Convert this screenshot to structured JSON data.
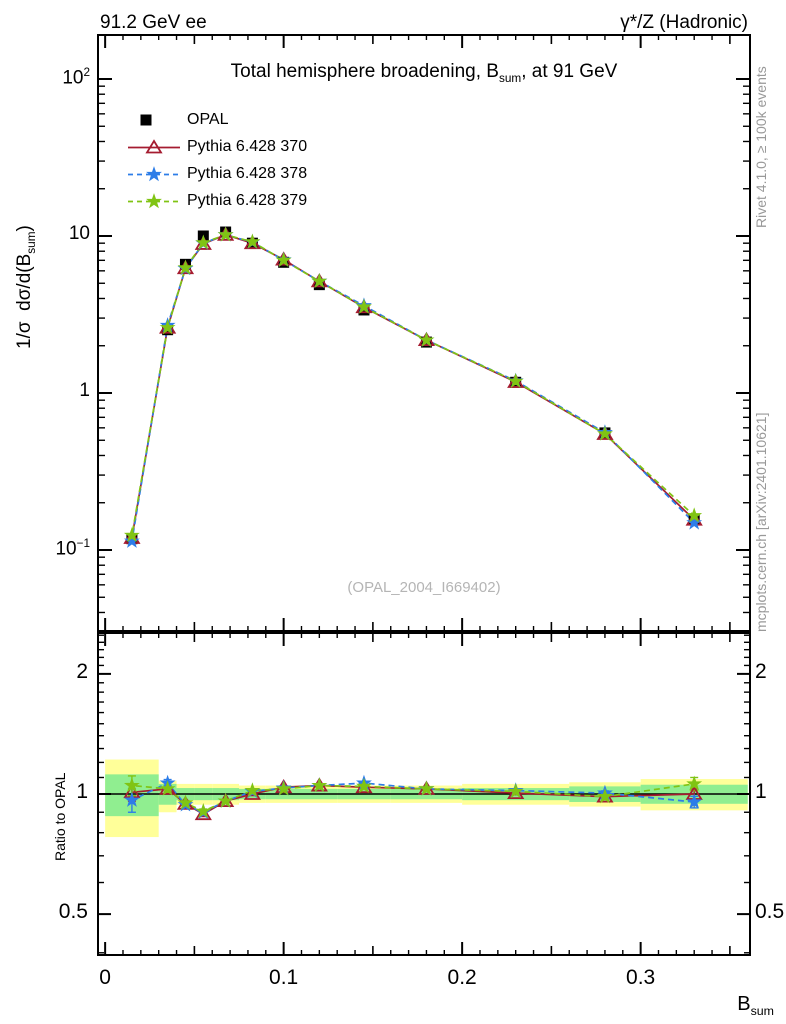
{
  "header": {
    "left": "91.2 GeV ee",
    "right": "γ*/Z (Hadronic)"
  },
  "side_texts": {
    "top": "Rivet 4.1.0, ≥ 100k events",
    "bottom": "mcplots.cern.ch [arXiv:2401.10621]"
  },
  "chart_data": {
    "type": "line",
    "panels": [
      "main",
      "ratio"
    ],
    "title": "Total hemisphere broadening, B_sum, at 91 GeV",
    "title_parts": {
      "pre": "Total hemisphere broadening, B",
      "sub": "sum",
      "post": ", at 91 GeV"
    },
    "xlabel_parts": {
      "pre": "B",
      "sub": "sum"
    },
    "ylabel_parts": {
      "pre": "1/σ  dσ/d(B",
      "sub": "sum",
      "post": ")"
    },
    "ratio_ylabel": "Ratio to OPAL",
    "watermark": "(OPAL_2004_I669402)",
    "x_axis": {
      "lim": [
        -0.004,
        0.361
      ],
      "major_ticks": [
        0,
        0.1,
        0.2,
        0.3
      ],
      "tick_labels": [
        "0",
        "0.1",
        "0.2",
        "0.3"
      ],
      "medium_ticks": [
        0.05,
        0.15,
        0.25,
        0.35
      ],
      "minor_step": 0.01
    },
    "main_y_axis": {
      "scale": "log",
      "lim": [
        0.031,
        191
      ],
      "decade_exps": [
        2,
        1,
        0,
        -1
      ]
    },
    "ratio_y_axis": {
      "scale": "log",
      "lim": [
        0.395,
        2.53
      ],
      "major_ticks": [
        2,
        1,
        0.5
      ],
      "tick_labels": [
        "2",
        "1",
        "0.5"
      ]
    },
    "bins": {
      "edges": [
        0.0,
        0.03,
        0.04,
        0.05,
        0.06,
        0.075,
        0.09,
        0.11,
        0.13,
        0.16,
        0.2,
        0.26,
        0.3,
        0.36
      ],
      "centers": [
        0.015,
        0.035,
        0.045,
        0.055,
        0.0675,
        0.0825,
        0.1,
        0.12,
        0.145,
        0.18,
        0.23,
        0.28,
        0.33
      ]
    },
    "opal": {
      "label": "OPAL",
      "color": "#000000",
      "values": [
        0.118,
        2.53,
        6.6,
        10.0,
        10.6,
        9.0,
        6.8,
        4.9,
        3.38,
        2.11,
        1.17,
        0.557,
        0.156
      ],
      "errors": [
        0.005,
        0.06,
        0.12,
        0.15,
        0.15,
        0.12,
        0.09,
        0.06,
        0.04,
        0.025,
        0.015,
        0.008,
        0.004
      ]
    },
    "series": [
      {
        "name": "Pythia 6.428 370",
        "color": "#a51c30",
        "marker": "triangle-open",
        "line": "solid",
        "ratio": [
          1.01,
          1.03,
          0.945,
          0.89,
          0.96,
          1.0,
          1.04,
          1.05,
          1.04,
          1.03,
          1.005,
          0.985,
          1.0
        ],
        "ratio_err": [
          0.05,
          0.02,
          0.013,
          0.012,
          0.01,
          0.009,
          0.008,
          0.008,
          0.008,
          0.008,
          0.009,
          0.013,
          0.03
        ]
      },
      {
        "name": "Pythia 6.428 378",
        "color": "#2d7de8",
        "marker": "star",
        "line": "dashed",
        "ratio": [
          0.965,
          1.065,
          0.94,
          0.9,
          0.96,
          1.015,
          1.035,
          1.05,
          1.065,
          1.03,
          1.02,
          1.005,
          0.955
        ],
        "ratio_err": [
          0.065,
          0.022,
          0.013,
          0.012,
          0.01,
          0.009,
          0.008,
          0.008,
          0.008,
          0.008,
          0.009,
          0.013,
          0.032
        ]
      },
      {
        "name": "Pythia 6.428 379",
        "color": "#80c414",
        "marker": "star",
        "line": "dashed",
        "ratio": [
          1.05,
          1.03,
          0.95,
          0.905,
          0.96,
          1.02,
          1.03,
          1.05,
          1.045,
          1.03,
          1.015,
          0.985,
          1.06
        ],
        "ratio_err": [
          0.06,
          0.02,
          0.013,
          0.012,
          0.01,
          0.009,
          0.008,
          0.008,
          0.008,
          0.008,
          0.009,
          0.013,
          0.04
        ]
      }
    ],
    "bands": {
      "yellow_color": "#ffff99",
      "green_color": "#90ee90",
      "yellow": [
        [
          0.78,
          1.22
        ],
        [
          0.9,
          1.08
        ],
        [
          0.94,
          1.06
        ],
        [
          0.94,
          1.06
        ],
        [
          0.94,
          1.06
        ],
        [
          0.95,
          1.05
        ],
        [
          0.95,
          1.05
        ],
        [
          0.95,
          1.05
        ],
        [
          0.95,
          1.05
        ],
        [
          0.95,
          1.05
        ],
        [
          0.94,
          1.06
        ],
        [
          0.93,
          1.07
        ],
        [
          0.91,
          1.09
        ]
      ],
      "green": [
        [
          0.88,
          1.12
        ],
        [
          0.94,
          1.06
        ],
        [
          0.965,
          1.035
        ],
        [
          0.965,
          1.035
        ],
        [
          0.965,
          1.035
        ],
        [
          0.97,
          1.03
        ],
        [
          0.97,
          1.03
        ],
        [
          0.97,
          1.03
        ],
        [
          0.97,
          1.03
        ],
        [
          0.97,
          1.03
        ],
        [
          0.965,
          1.035
        ],
        [
          0.955,
          1.045
        ],
        [
          0.945,
          1.055
        ]
      ]
    },
    "unity_line": 1
  }
}
